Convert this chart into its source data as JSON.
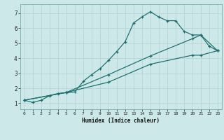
{
  "xlabel": "Humidex (Indice chaleur)",
  "bg_color": "#cce8e8",
  "grid_color": "#b8d4d4",
  "line_color": "#1a6b6b",
  "xlim": [
    -0.5,
    23.5
  ],
  "ylim": [
    0.6,
    7.6
  ],
  "xticks": [
    0,
    1,
    2,
    3,
    4,
    5,
    6,
    7,
    8,
    9,
    10,
    11,
    12,
    13,
    14,
    15,
    16,
    17,
    18,
    19,
    20,
    21,
    22,
    23
  ],
  "yticks": [
    1,
    2,
    3,
    4,
    5,
    6,
    7
  ],
  "line1_x": [
    0,
    1,
    2,
    3,
    4,
    5,
    6,
    7,
    8,
    9,
    10,
    11,
    12,
    13,
    14,
    15,
    16,
    17,
    18,
    19,
    20,
    21,
    22,
    23
  ],
  "line1_y": [
    1.2,
    1.05,
    1.2,
    1.5,
    1.65,
    1.7,
    1.75,
    2.45,
    2.9,
    3.3,
    3.85,
    4.45,
    5.1,
    6.35,
    6.75,
    7.1,
    6.75,
    6.5,
    6.5,
    5.8,
    5.55,
    5.55,
    4.8,
    4.5
  ],
  "line2_x": [
    0,
    5,
    10,
    15,
    20,
    21,
    23
  ],
  "line2_y": [
    1.2,
    1.72,
    2.9,
    4.15,
    5.3,
    5.55,
    4.5
  ],
  "line3_x": [
    0,
    5,
    10,
    15,
    20,
    21,
    23
  ],
  "line3_y": [
    1.2,
    1.72,
    2.4,
    3.6,
    4.2,
    4.2,
    4.5
  ]
}
